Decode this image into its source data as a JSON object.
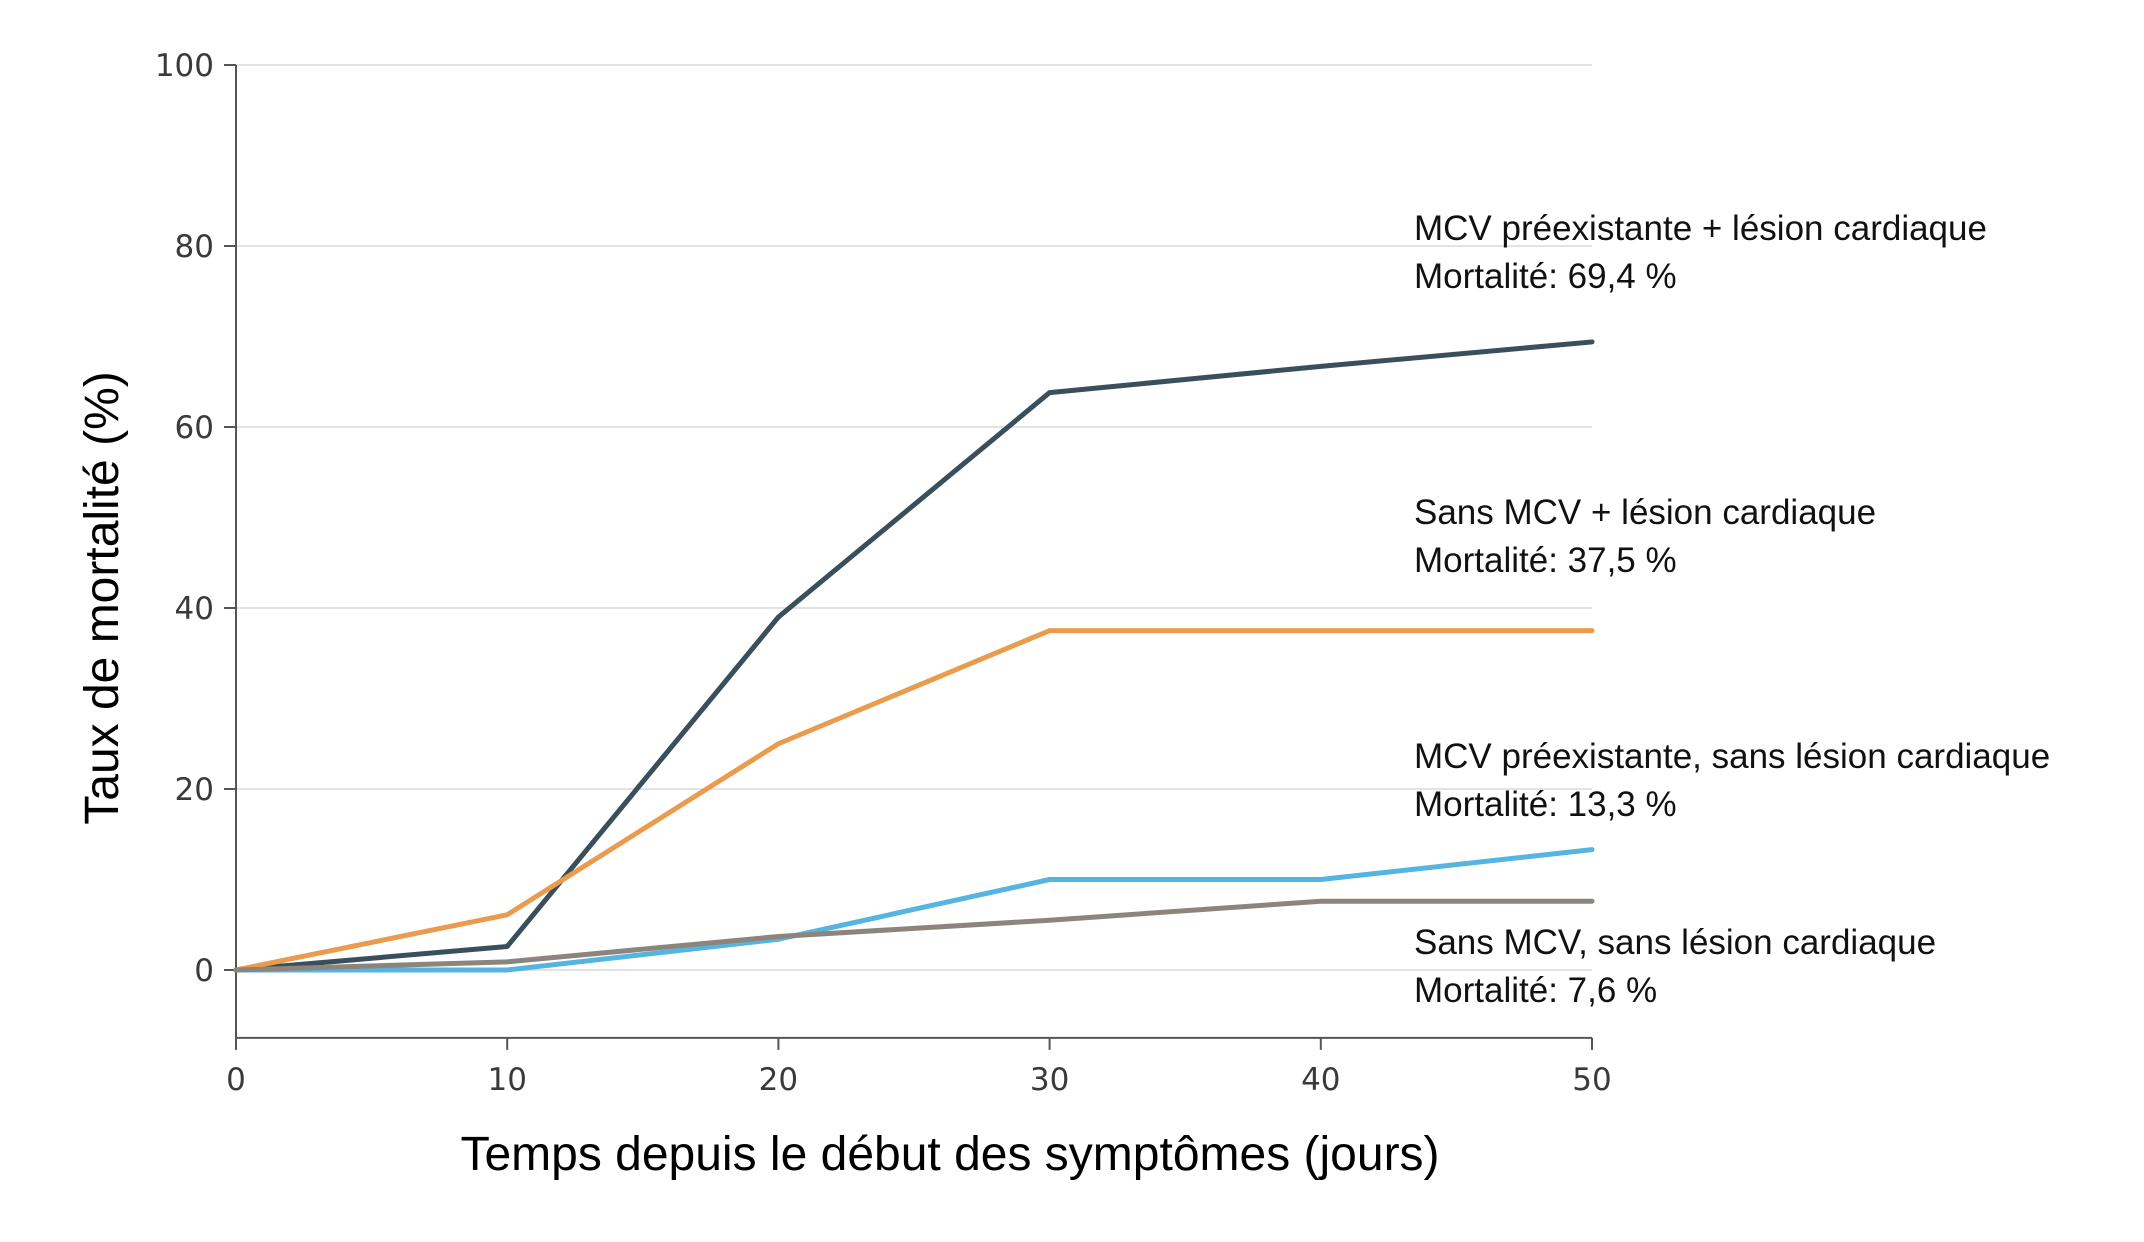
{
  "chart_data": {
    "type": "line",
    "title": "",
    "xlabel": "Temps depuis le début des symptômes (jours)",
    "ylabel": "Taux de mortalité (%)",
    "xlim": [
      0,
      50
    ],
    "ylim": [
      -7.5,
      100
    ],
    "x_ticks": [
      "0",
      "10",
      "20",
      "30",
      "40",
      "50"
    ],
    "y_ticks": [
      "0",
      "20",
      "40",
      "60",
      "80",
      "100"
    ],
    "grid": "horizontal",
    "x": [
      0,
      10,
      20,
      30,
      40,
      50
    ],
    "series": [
      {
        "color": "#3a4f5c",
        "values": [
          0,
          2.6,
          39,
          63.8,
          66.7,
          69.4
        ],
        "annotation": [
          "MCV préexistante + lésion cardiaque",
          "Mortalité: 69,4 %"
        ]
      },
      {
        "color": "#e99c4e",
        "values": [
          0,
          6.1,
          25,
          37.5,
          37.5,
          37.5
        ],
        "annotation": [
          "Sans MCV + lésion cardiaque",
          "Mortalité: 37,5 %"
        ]
      },
      {
        "color": "#55b4e0",
        "values": [
          0,
          0,
          3.4,
          10,
          10,
          13.3
        ],
        "annotation": [
          "MCV préexistante, sans lésion cardiaque",
          "Mortalité: 13,3 %"
        ]
      },
      {
        "color": "#8b857d",
        "values": [
          0,
          0.9,
          3.7,
          5.5,
          7.6,
          7.6
        ],
        "annotation": [
          "Sans MCV, sans lésion cardiaque",
          "Mortalité: 7,6 %"
        ]
      }
    ]
  }
}
